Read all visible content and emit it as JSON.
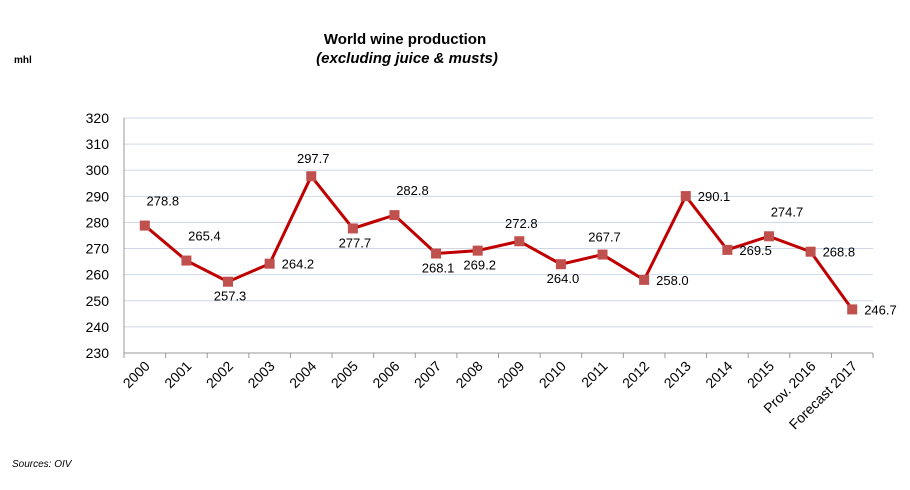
{
  "chart_data": {
    "type": "line",
    "title": "World wine production",
    "subtitle": "(excluding juice & musts)",
    "unit_label": "mhl",
    "source": "Sources: OIV",
    "ylim": [
      230,
      320
    ],
    "yticks": [
      230,
      240,
      250,
      260,
      270,
      280,
      290,
      300,
      310,
      320
    ],
    "grid": true,
    "categories": [
      "2000",
      "2001",
      "2002",
      "2003",
      "2004",
      "2005",
      "2006",
      "2007",
      "2008",
      "2009",
      "2010",
      "2011",
      "2012",
      "2013",
      "2014",
      "2015",
      "Prov. 2016",
      "Forecast 2017"
    ],
    "series": [
      {
        "values": [
          278.8,
          265.4,
          257.3,
          264.2,
          297.7,
          277.7,
          282.8,
          268.1,
          269.2,
          272.8,
          264.0,
          267.7,
          258.0,
          290.1,
          269.5,
          274.7,
          268.8,
          246.7
        ],
        "labels": [
          "278.8",
          "265.4",
          "257.3",
          "264.2",
          "297.7",
          "277.7",
          "282.8",
          "268.1",
          "269.2",
          "272.8",
          "264.0",
          "267.7",
          "258.0",
          "290.1",
          "269.5",
          "274.7",
          "268.8",
          "246.7"
        ],
        "color": "#c00000",
        "marker_color": "#c0504d"
      }
    ]
  }
}
